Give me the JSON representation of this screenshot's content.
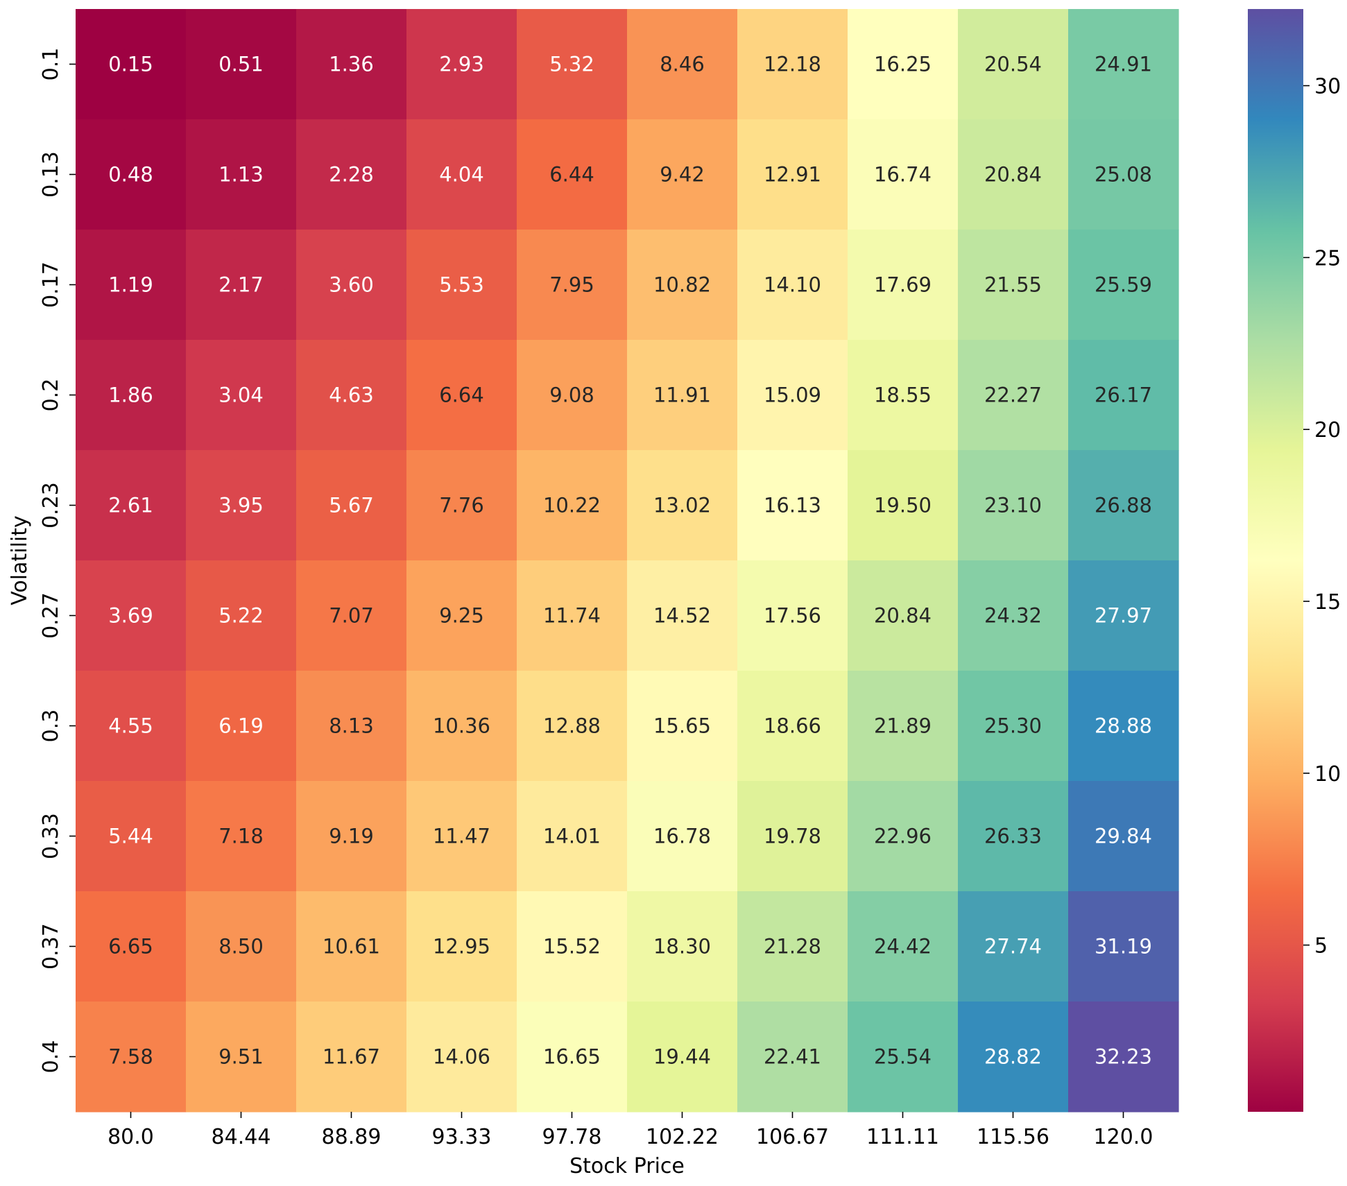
{
  "chart_data": {
    "type": "heatmap",
    "title": "",
    "xlabel": "Stock Price",
    "ylabel": "Volatility",
    "x_categories": [
      "80.0",
      "84.44",
      "88.89",
      "93.33",
      "97.78",
      "102.22",
      "106.67",
      "111.11",
      "115.56",
      "120.0"
    ],
    "y_categories": [
      "0.1",
      "0.13",
      "0.17",
      "0.2",
      "0.23",
      "0.27",
      "0.3",
      "0.33",
      "0.37",
      "0.4"
    ],
    "values": [
      [
        0.15,
        0.51,
        1.36,
        2.93,
        5.32,
        8.46,
        12.18,
        16.25,
        20.54,
        24.91
      ],
      [
        0.48,
        1.13,
        2.28,
        4.04,
        6.44,
        9.42,
        12.91,
        16.74,
        20.84,
        25.08
      ],
      [
        1.19,
        2.17,
        3.6,
        5.53,
        7.95,
        10.82,
        14.1,
        17.69,
        21.55,
        25.59
      ],
      [
        1.86,
        3.04,
        4.63,
        6.64,
        9.08,
        11.91,
        15.09,
        18.55,
        22.27,
        26.17
      ],
      [
        2.61,
        3.95,
        5.67,
        7.76,
        10.22,
        13.02,
        16.13,
        19.5,
        23.1,
        26.88
      ],
      [
        3.69,
        5.22,
        7.07,
        9.25,
        11.74,
        14.52,
        17.56,
        20.84,
        24.32,
        27.97
      ],
      [
        4.55,
        6.19,
        8.13,
        10.36,
        12.88,
        15.65,
        18.66,
        21.89,
        25.3,
        28.88
      ],
      [
        5.44,
        7.18,
        9.19,
        11.47,
        14.01,
        16.78,
        19.78,
        22.96,
        26.33,
        29.84
      ],
      [
        6.65,
        8.5,
        10.61,
        12.95,
        15.52,
        18.3,
        21.28,
        24.42,
        27.74,
        31.19
      ],
      [
        7.58,
        9.51,
        11.67,
        14.06,
        16.65,
        19.44,
        22.41,
        25.54,
        28.82,
        32.23
      ]
    ],
    "value_format": "2 decimals",
    "colormap": "Spectral",
    "colorbar": {
      "range": [
        0.15,
        32.23
      ],
      "ticks": [
        5,
        10,
        15,
        20,
        25,
        30
      ]
    },
    "grid": false,
    "legend": "colorbar-right"
  }
}
